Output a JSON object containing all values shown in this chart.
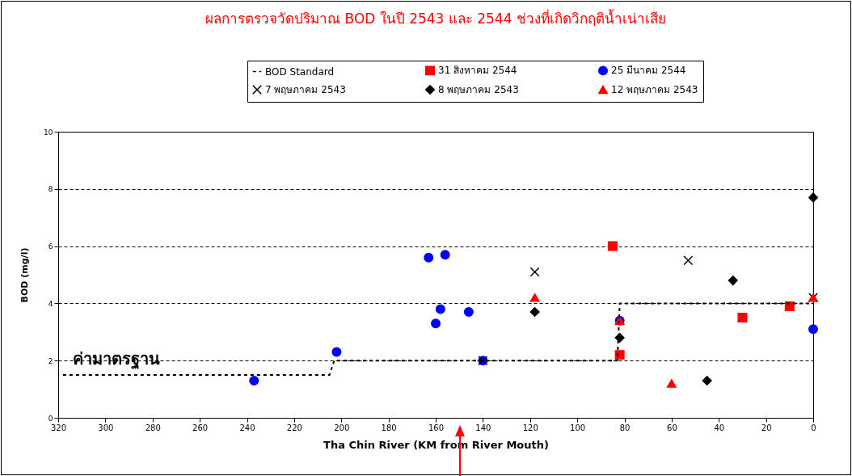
{
  "chart_data": {
    "type": "scatter",
    "title": "ผลการตรวจวัดปริมาณ BOD ในปี 2543 และ 2544 ช่วงที่เกิดวิกฤติน้ำเน่าเสีย",
    "xlabel": "Tha Chin River (KM from River Mouth)",
    "ylabel": "BOD (mg/l)",
    "xlim": [
      320,
      0
    ],
    "xticks": [
      320,
      300,
      280,
      260,
      240,
      220,
      200,
      180,
      160,
      140,
      120,
      100,
      80,
      60,
      40,
      20,
      0
    ],
    "ylim": [
      0,
      10
    ],
    "yticks": [
      0,
      2,
      4,
      6,
      8,
      10
    ],
    "grid": "y",
    "legend": "top",
    "annotations": [
      "ค่ามาตรฐาน"
    ],
    "series": [
      {
        "name": "BOD Standard",
        "type": "line",
        "line_style": "dashed",
        "color": "#000000",
        "x": [
          318,
          205,
          203,
          83,
          82,
          0
        ],
        "values": [
          1.5,
          1.5,
          2,
          2,
          4,
          4
        ]
      },
      {
        "name": "31 สิงหาคม 2544",
        "marker": "square",
        "color": "#ff0000",
        "x": [
          85,
          82,
          30,
          10
        ],
        "values": [
          6.0,
          2.2,
          3.5,
          3.9
        ]
      },
      {
        "name": "25 มีนาคม 2544",
        "marker": "circle",
        "color": "#0000ff",
        "x": [
          237,
          202,
          163,
          156,
          158,
          160,
          146,
          140,
          82,
          0
        ],
        "values": [
          1.3,
          2.3,
          5.6,
          5.7,
          3.8,
          3.3,
          3.7,
          2.0,
          3.4,
          3.1
        ]
      },
      {
        "name": "7 พฤษภาคม 2543",
        "marker": "cross",
        "color": "#000000",
        "x": [
          140,
          118,
          53,
          0
        ],
        "values": [
          2.0,
          5.1,
          5.5,
          4.2
        ]
      },
      {
        "name": "8 พฤษภาคม 2543",
        "marker": "diamond",
        "color": "#000000",
        "x": [
          118,
          82,
          45,
          34,
          0
        ],
        "values": [
          3.7,
          2.8,
          1.3,
          4.8,
          7.7
        ]
      },
      {
        "name": "12 พฤษภาคม 2543",
        "marker": "triangle",
        "color": "#ff0000",
        "x": [
          118,
          82,
          60,
          0
        ],
        "values": [
          4.2,
          3.4,
          1.2,
          4.2
        ]
      }
    ]
  }
}
